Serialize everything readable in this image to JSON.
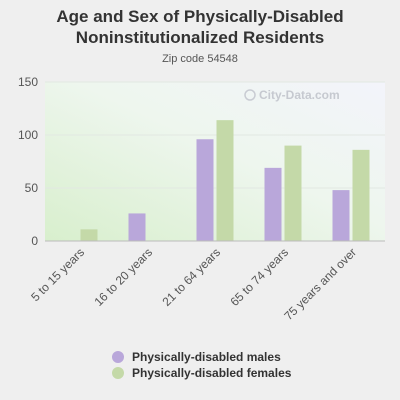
{
  "chart_data": {
    "type": "bar",
    "title": "Age and Sex of Physically-Disabled Noninstitutionalized Residents",
    "title_lines": [
      "Age and Sex of Physically-Disabled",
      "Noninstitutionalized Residents"
    ],
    "subtitle": "Zip code 54548",
    "watermark": "City-Data.com",
    "categories": [
      "5 to 15 years",
      "16 to 20 years",
      "21 to 64 years",
      "65 to 74 years",
      "75 years and over"
    ],
    "series": [
      {
        "name": "Physically-disabled males",
        "color": "#b9a7da",
        "values": [
          0,
          26,
          96,
          69,
          48
        ]
      },
      {
        "name": "Physically-disabled females",
        "color": "#c4d9a8",
        "values": [
          11,
          0,
          114,
          90,
          86
        ]
      }
    ],
    "yticks": [
      "0",
      "50",
      "100",
      "150"
    ],
    "ylim": [
      0,
      150
    ],
    "grid": true,
    "legend_position": "bottom"
  }
}
